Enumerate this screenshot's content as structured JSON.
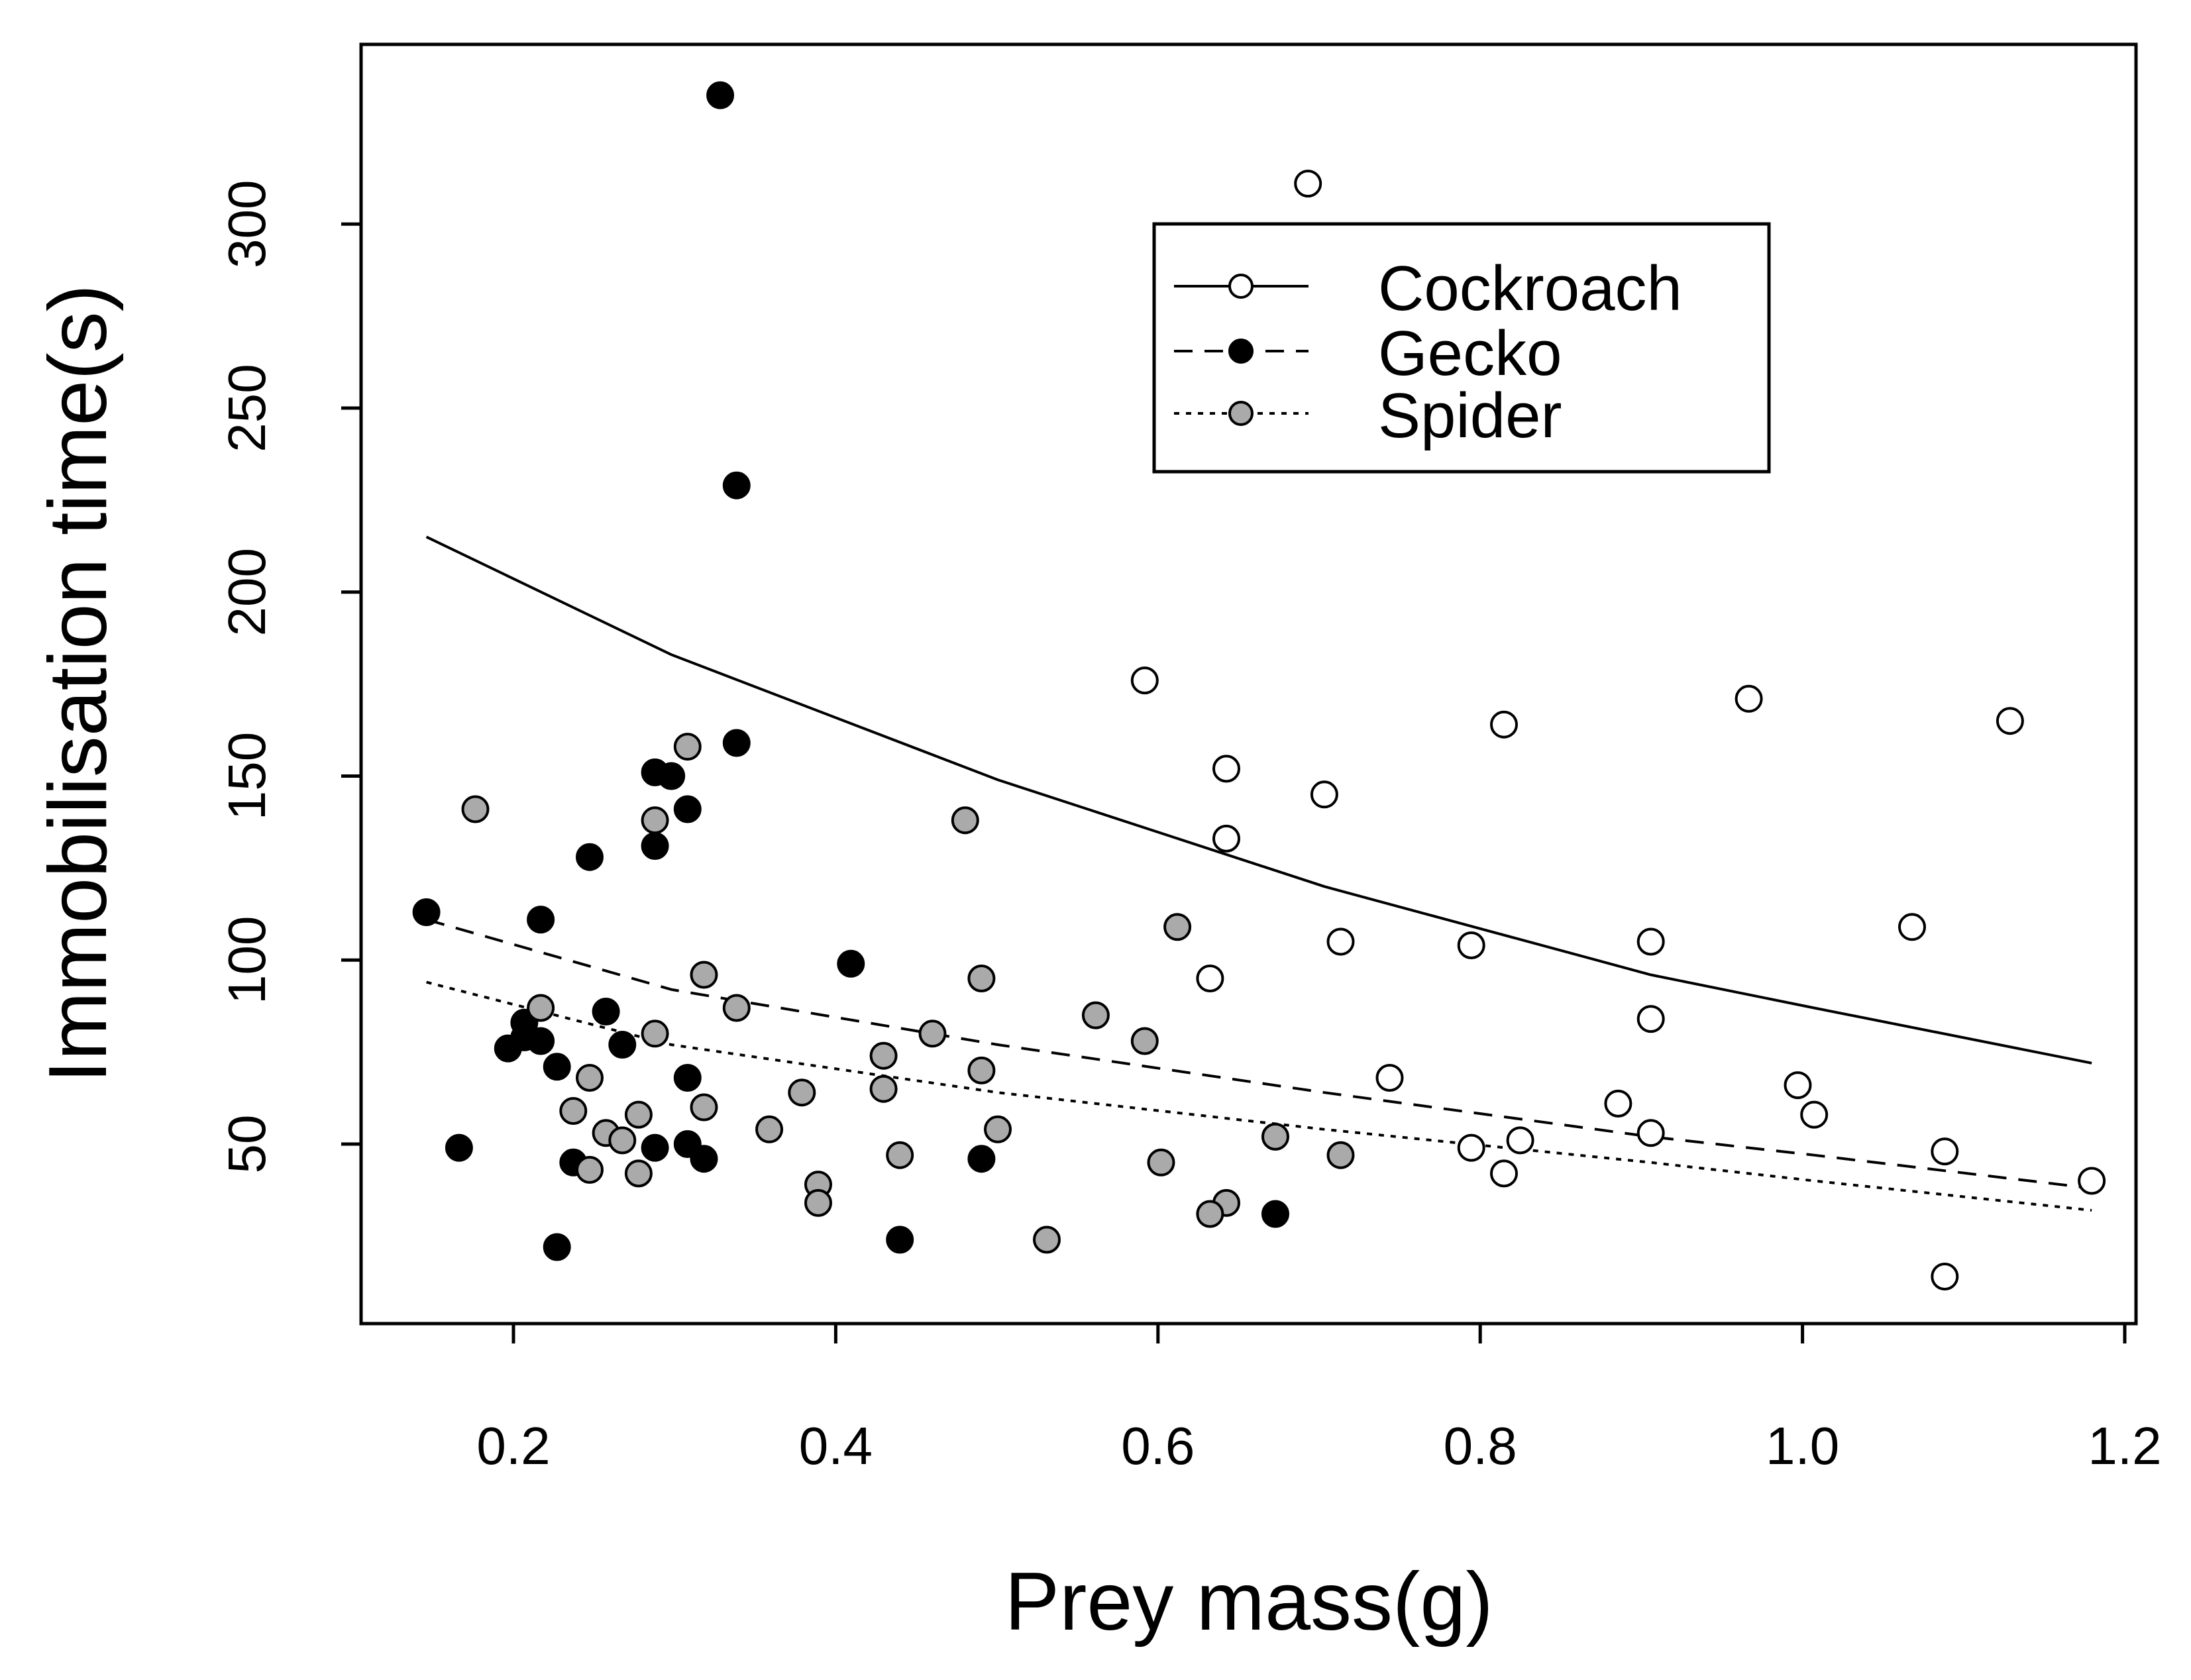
{
  "chart_data": {
    "type": "scatter",
    "xlabel": "Prey mass(g)",
    "ylabel": "Immobilisation time(s)",
    "xlim": [
      0.11,
      1.2
    ],
    "ylim": [
      0,
      350
    ],
    "xticks": [
      {
        "value": 0.2,
        "label": "0.2"
      },
      {
        "value": 0.4,
        "label": "0.4"
      },
      {
        "value": 0.6,
        "label": "0.6"
      },
      {
        "value": 0.8,
        "label": "0.8"
      },
      {
        "value": 1.0,
        "label": "1.0"
      },
      {
        "value": 1.2,
        "label": "1.2"
      }
    ],
    "yticks": [
      {
        "value": 50,
        "label": "50"
      },
      {
        "value": 100,
        "label": "100"
      },
      {
        "value": 150,
        "label": "150"
      },
      {
        "value": 200,
        "label": "200"
      },
      {
        "value": 250,
        "label": "250"
      },
      {
        "value": 300,
        "label": "300"
      }
    ],
    "legend": {
      "position": "top-right",
      "entries": [
        {
          "label": "Cockroach",
          "series": "cockroach"
        },
        {
          "label": "Gecko",
          "series": "gecko"
        },
        {
          "label": "Spider",
          "series": "spider"
        }
      ]
    },
    "series": [
      {
        "id": "cockroach",
        "name": "Cockroach",
        "fill": "#ffffff",
        "line_style": "solid",
        "points": [
          [
            0.69,
            311
          ],
          [
            0.59,
            176
          ],
          [
            0.96,
            171
          ],
          [
            0.81,
            164
          ],
          [
            1.12,
            165
          ],
          [
            0.64,
            152
          ],
          [
            0.7,
            145
          ],
          [
            0.64,
            133
          ],
          [
            1.06,
            109
          ],
          [
            0.71,
            105
          ],
          [
            0.79,
            104
          ],
          [
            0.9,
            105
          ],
          [
            0.63,
            95
          ],
          [
            0.9,
            84
          ],
          [
            0.74,
            68
          ],
          [
            0.99,
            66
          ],
          [
            0.88,
            61
          ],
          [
            1.0,
            58
          ],
          [
            0.9,
            53
          ],
          [
            0.82,
            51
          ],
          [
            0.79,
            49
          ],
          [
            1.08,
            48
          ],
          [
            0.81,
            42
          ],
          [
            1.17,
            40
          ],
          [
            1.08,
            14
          ]
        ],
        "fit": [
          [
            0.15,
            215
          ],
          [
            0.3,
            183
          ],
          [
            0.5,
            149
          ],
          [
            0.7,
            120
          ],
          [
            0.9,
            96
          ],
          [
            1.0,
            87
          ],
          [
            1.17,
            72
          ]
        ]
      },
      {
        "id": "gecko",
        "name": "Gecko",
        "fill": "#000000",
        "line_style": "dashed",
        "points": [
          [
            0.33,
            335
          ],
          [
            0.34,
            229
          ],
          [
            0.34,
            159
          ],
          [
            0.29,
            151
          ],
          [
            0.3,
            150
          ],
          [
            0.31,
            141
          ],
          [
            0.29,
            131
          ],
          [
            0.25,
            128
          ],
          [
            0.15,
            113
          ],
          [
            0.22,
            111
          ],
          [
            0.41,
            99
          ],
          [
            0.26,
            86
          ],
          [
            0.21,
            83
          ],
          [
            0.22,
            78
          ],
          [
            0.27,
            77
          ],
          [
            0.2,
            76
          ],
          [
            0.21,
            79
          ],
          [
            0.23,
            71
          ],
          [
            0.31,
            68
          ],
          [
            0.31,
            50
          ],
          [
            0.17,
            49
          ],
          [
            0.29,
            49
          ],
          [
            0.32,
            46
          ],
          [
            0.49,
            46
          ],
          [
            0.24,
            45
          ],
          [
            0.67,
            31
          ],
          [
            0.44,
            24
          ],
          [
            0.23,
            22
          ]
        ],
        "fit": [
          [
            0.15,
            111
          ],
          [
            0.3,
            92
          ],
          [
            0.5,
            77
          ],
          [
            0.7,
            64
          ],
          [
            0.9,
            52
          ],
          [
            1.0,
            47
          ],
          [
            1.17,
            38
          ]
        ]
      },
      {
        "id": "spider",
        "name": "Spider",
        "fill": "#aaaaaa",
        "line_style": "dotted",
        "points": [
          [
            0.31,
            158
          ],
          [
            0.18,
            141
          ],
          [
            0.48,
            138
          ],
          [
            0.29,
            138
          ],
          [
            0.61,
            109
          ],
          [
            0.32,
            96
          ],
          [
            0.49,
            95
          ],
          [
            0.22,
            87
          ],
          [
            0.34,
            87
          ],
          [
            0.56,
            85
          ],
          [
            0.29,
            80
          ],
          [
            0.46,
            80
          ],
          [
            0.59,
            78
          ],
          [
            0.43,
            74
          ],
          [
            0.49,
            70
          ],
          [
            0.25,
            68
          ],
          [
            0.38,
            64
          ],
          [
            0.43,
            65
          ],
          [
            0.24,
            59
          ],
          [
            0.32,
            60
          ],
          [
            0.28,
            58
          ],
          [
            0.36,
            54
          ],
          [
            0.5,
            54
          ],
          [
            0.26,
            53
          ],
          [
            0.27,
            51
          ],
          [
            0.67,
            52
          ],
          [
            0.44,
            47
          ],
          [
            0.71,
            47
          ],
          [
            0.6,
            45
          ],
          [
            0.25,
            43
          ],
          [
            0.28,
            42
          ],
          [
            0.39,
            39
          ],
          [
            0.39,
            34
          ],
          [
            0.64,
            34
          ],
          [
            0.63,
            31
          ],
          [
            0.53,
            24
          ]
        ],
        "fit": [
          [
            0.15,
            94
          ],
          [
            0.3,
            77
          ],
          [
            0.5,
            64
          ],
          [
            0.7,
            54
          ],
          [
            0.9,
            45
          ],
          [
            1.0,
            40
          ],
          [
            1.17,
            32
          ]
        ]
      }
    ]
  }
}
